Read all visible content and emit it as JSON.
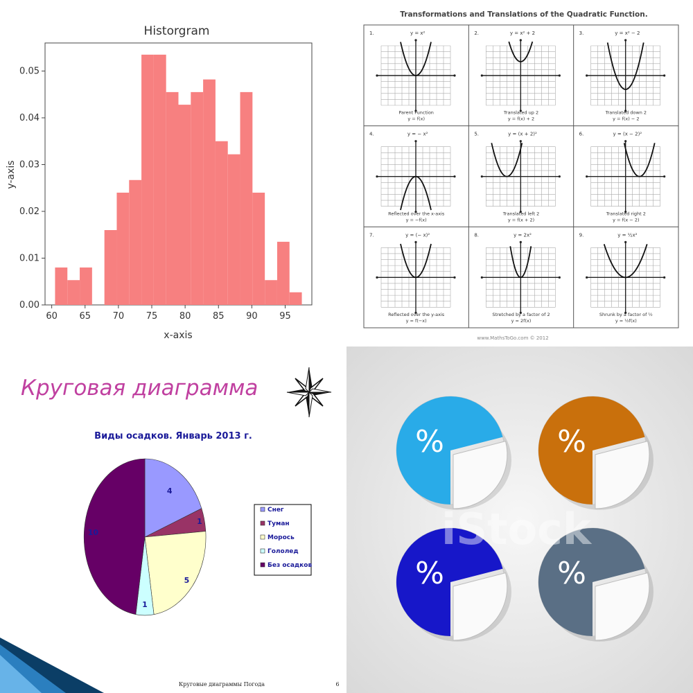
{
  "histogram": {
    "title": "Historgram",
    "xlabel": "x-axis",
    "ylabel": "y-axis",
    "color": "#f78080",
    "xticks": [
      "60",
      "65",
      "70",
      "75",
      "80",
      "85",
      "90",
      "95"
    ],
    "yticks": [
      "0.00",
      "0.01",
      "0.02",
      "0.03",
      "0.04",
      "0.05"
    ]
  },
  "quadratic": {
    "title": "Transformations and Translations of the Quadratic Function.",
    "footer": "www.MathsToGo.com © 2012",
    "cells": [
      {
        "num": "1.",
        "eq": "y = x²",
        "cap1": "Parent Function",
        "cap2": "y = f(x)",
        "curve": "parent"
      },
      {
        "num": "2.",
        "eq": "y = x² + 2",
        "cap1": "Translated up 2",
        "cap2": "y = f(x) + 2",
        "curve": "up"
      },
      {
        "num": "3.",
        "eq": "y = x² − 2",
        "cap1": "Translated down 2",
        "cap2": "y = f(x) − 2",
        "curve": "down"
      },
      {
        "num": "4.",
        "eq": "y = − x²",
        "cap1": "Reflected over the x-axis",
        "cap2": "y = −f(x)",
        "curve": "reflect"
      },
      {
        "num": "5.",
        "eq": "y = (x + 2)²",
        "cap1": "Translated left 2",
        "cap2": "y = f(x + 2)",
        "curve": "left"
      },
      {
        "num": "6.",
        "eq": "y = (x − 2)²",
        "cap1": "Translated right 2",
        "cap2": "y = f(x − 2)",
        "curve": "right"
      },
      {
        "num": "7.",
        "eq": "y = (− x)²",
        "cap1": "Reflected over the y-axis",
        "cap2": "y = f(−x)",
        "curve": "parent"
      },
      {
        "num": "8.",
        "eq": "y = 2x²",
        "cap1": "Stretched by a factor of 2",
        "cap2": "y = 2f(x)",
        "curve": "stretch"
      },
      {
        "num": "9.",
        "eq": "y = ½x²",
        "cap1": "Shrunk by a factor of ½",
        "cap2": "y = ½f(x)",
        "curve": "shrink"
      }
    ]
  },
  "slide": {
    "heading": "Круговая диаграмма",
    "chart_title": "Виды осадков. Январь 2013 г.",
    "footer_text": "Круговые диаграммы Погода",
    "page_number": "6",
    "heading_color": "#c040a0"
  },
  "stock": {
    "symbol": "%",
    "watermark": "iStock",
    "colors": [
      "#29abe8",
      "#c9700c",
      "#1717c9",
      "#5a6f85"
    ]
  },
  "chart_data": [
    {
      "type": "bar",
      "title": "Historgram",
      "xlabel": "x-axis",
      "ylabel": "y-axis",
      "xlim": [
        59,
        99
      ],
      "ylim": [
        0,
        0.056
      ],
      "bin_width": 1.85,
      "bin_start": 60.5,
      "values": [
        0.008,
        0.0053,
        0.008,
        0.0,
        0.016,
        0.024,
        0.0267,
        0.0535,
        0.0535,
        0.0455,
        0.0428,
        0.0455,
        0.0482,
        0.035,
        0.0322,
        0.0455,
        0.024,
        0.0053,
        0.0135,
        0.0027
      ]
    },
    {
      "type": "pie",
      "title": "Виды осадков. Январь 2013 г.",
      "categories": [
        "Снег",
        "Туман",
        "Морось",
        "Гололед",
        "Без осадков"
      ],
      "values": [
        4,
        1,
        5,
        1,
        10
      ],
      "colors": [
        "#9999ff",
        "#993366",
        "#ffffcc",
        "#ccffff",
        "#660066"
      ]
    }
  ]
}
